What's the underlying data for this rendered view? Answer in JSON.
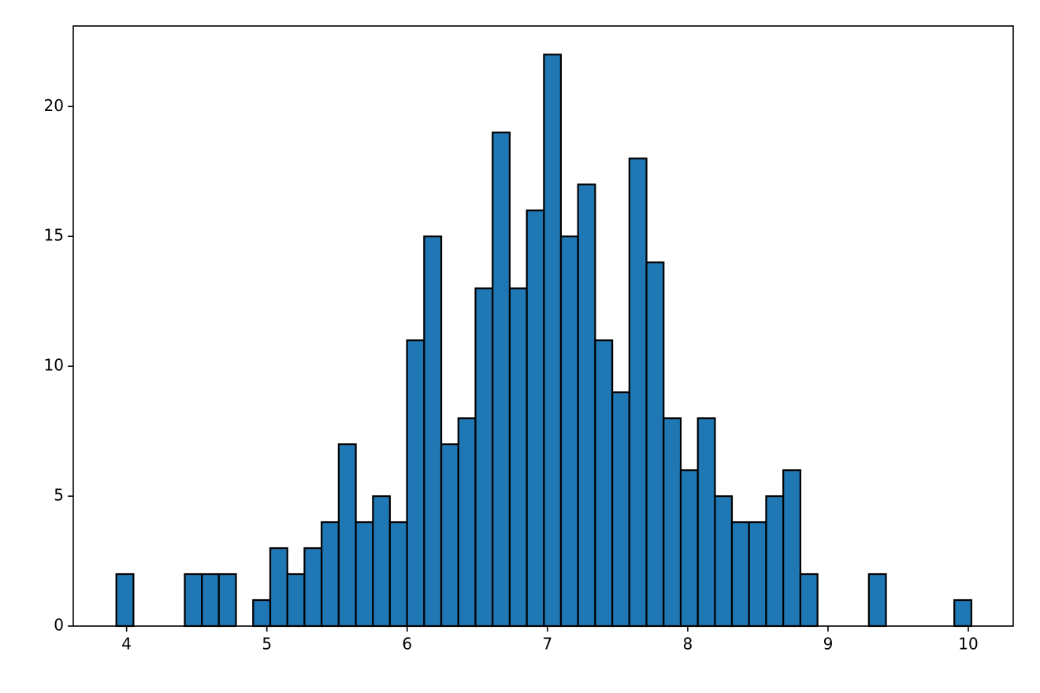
{
  "chart_data": {
    "type": "histogram",
    "bins": [
      3.927,
      4.049,
      4.171,
      4.293,
      4.415,
      4.537,
      4.658,
      4.78,
      4.902,
      5.024,
      5.146,
      5.268,
      5.39,
      5.512,
      5.634,
      5.756,
      5.877,
      5.999,
      6.121,
      6.243,
      6.365,
      6.487,
      6.609,
      6.731,
      6.853,
      6.975,
      7.096,
      7.218,
      7.34,
      7.462,
      7.584,
      7.706,
      7.828,
      7.95,
      8.072,
      8.194,
      8.315,
      8.437,
      8.559,
      8.681,
      8.803,
      8.925,
      9.047,
      9.169,
      9.291,
      9.413,
      9.534,
      9.656,
      9.778,
      9.9,
      10.022
    ],
    "values": [
      2,
      0,
      0,
      0,
      2,
      2,
      2,
      0,
      1,
      3,
      2,
      3,
      4,
      7,
      4,
      5,
      4,
      11,
      15,
      7,
      8,
      13,
      19,
      13,
      16,
      22,
      15,
      17,
      11,
      9,
      18,
      14,
      8,
      6,
      8,
      5,
      4,
      4,
      5,
      6,
      2,
      0,
      0,
      0,
      2,
      0,
      0,
      0,
      0,
      1
    ],
    "color": "#1f77b4",
    "edgecolor": "#000000",
    "xlim": [
      3.62,
      10.32
    ],
    "xticks": [
      4,
      5,
      6,
      7,
      8,
      9,
      10
    ],
    "ylim": [
      0,
      23.1
    ],
    "yticks": [
      0,
      5,
      10,
      15,
      20
    ]
  }
}
